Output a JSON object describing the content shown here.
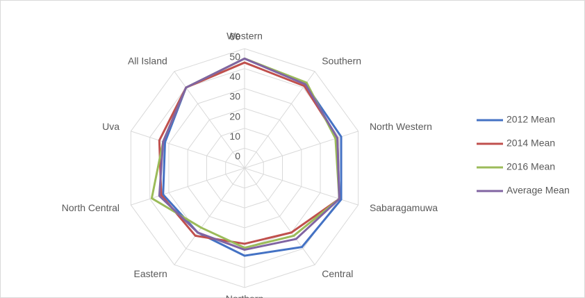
{
  "chart_data": {
    "type": "radar",
    "categories": [
      "Western",
      "Southern",
      "North Western",
      "Sabaragamuwa",
      "Central",
      "Northern",
      "Eastern",
      "North Central",
      "Uva",
      "All Island"
    ],
    "series": [
      {
        "name": "2012 Mean",
        "color": "#4472c4",
        "values": [
          55,
          52,
          51,
          51,
          49,
          44,
          40,
          43,
          42,
          50
        ]
      },
      {
        "name": "2014 Mean",
        "color": "#c0504d",
        "values": [
          53,
          51,
          49,
          50,
          40,
          38,
          42,
          44,
          45,
          50
        ]
      },
      {
        "name": "2016 Mean",
        "color": "#9bbb59",
        "values": [
          55,
          53,
          48,
          50,
          42,
          40,
          37,
          49,
          43,
          50
        ]
      },
      {
        "name": "Average Mean",
        "color": "#8064a2",
        "values": [
          55,
          52,
          49,
          50,
          44,
          41,
          40,
          45,
          43,
          50
        ]
      }
    ],
    "ylim": [
      0,
      60
    ],
    "yticks": [
      0,
      10,
      20,
      30,
      40,
      50,
      60
    ],
    "grid": true,
    "legend": "right"
  }
}
